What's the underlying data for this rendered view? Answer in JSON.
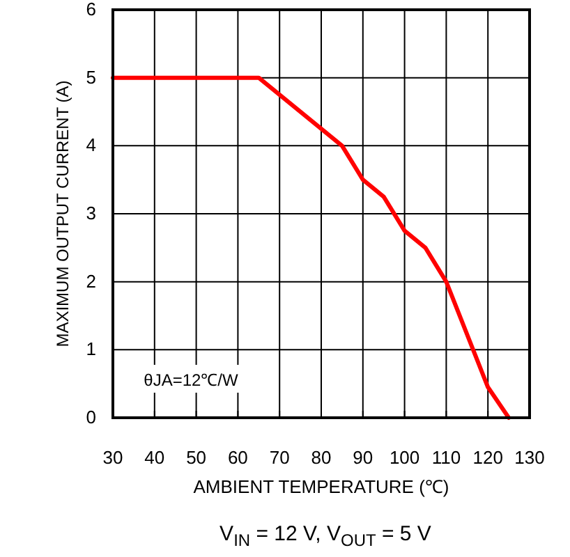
{
  "chart_data": {
    "type": "line",
    "xlabel": "AMBIENT TEMPERATURE (℃)",
    "ylabel": "MAXIMUM OUTPUT CURRENT (A)",
    "x": [
      30,
      65,
      85,
      90,
      95,
      100,
      105,
      110,
      120,
      125
    ],
    "series": [
      {
        "color": "#ff0000",
        "values": [
          5,
          5,
          4,
          3.5,
          3.25,
          2.75,
          2.5,
          2,
          0.45,
          0
        ]
      }
    ],
    "xlim": [
      30,
      130
    ],
    "xticks": [
      30,
      40,
      50,
      60,
      70,
      80,
      90,
      100,
      110,
      120,
      130
    ],
    "ylim": [
      0,
      6
    ],
    "yticks": [
      0,
      1,
      2,
      3,
      4,
      5,
      6
    ],
    "grid": true,
    "line_style": "solid",
    "marker": "none",
    "annotations": [
      "θJA=12℃/W",
      "V$_{IN}$ = 12 V, V$_{OUT}$ = 5 V"
    ]
  }
}
